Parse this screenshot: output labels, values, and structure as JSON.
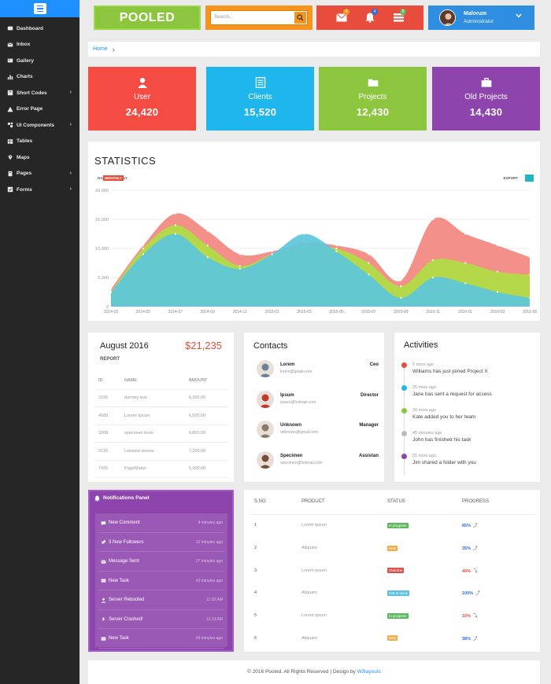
{
  "sidebar": {
    "items": [
      {
        "label": "Dashboard",
        "icon": "dashboard-icon"
      },
      {
        "label": "Inbox",
        "icon": "inbox-icon"
      },
      {
        "label": "Gallery",
        "icon": "gallery-icon"
      },
      {
        "label": "Charts",
        "icon": "charts-icon"
      },
      {
        "label": "Short Codes",
        "icon": "shortcodes-icon",
        "arrow": true
      },
      {
        "label": "Error Page",
        "icon": "warning-icon"
      },
      {
        "label": "UI Components",
        "icon": "components-icon",
        "arrow": true
      },
      {
        "label": "Tables",
        "icon": "table-icon"
      },
      {
        "label": "Maps",
        "icon": "map-marker-icon"
      },
      {
        "label": "Pages",
        "icon": "pages-icon",
        "arrow": true
      },
      {
        "label": "Forms",
        "icon": "forms-icon",
        "arrow": true
      }
    ]
  },
  "header": {
    "logo": "POOLED",
    "search_placeholder": "Search...",
    "notifications": [
      {
        "icon": "envelope-icon",
        "count": "4",
        "badge_color": "#f7941d"
      },
      {
        "icon": "bell-icon",
        "count": "4",
        "badge_color": "#2f6fe0"
      },
      {
        "icon": "tasks-icon",
        "count": "8",
        "badge_color": "#5cb85c"
      }
    ],
    "user_name": "Malorum",
    "user_role": "Administrator"
  },
  "breadcrumb": {
    "home": "Home"
  },
  "tiles": [
    {
      "label": "User",
      "value": "24,420",
      "color": "#f44b42",
      "icon": "user-icon"
    },
    {
      "label": "Clients",
      "value": "15,520",
      "color": "#1fb5ed",
      "icon": "list-icon"
    },
    {
      "label": "Projects",
      "value": "12,430",
      "color": "#8cc63f",
      "icon": "folder-icon"
    },
    {
      "label": "Old Projects",
      "value": "14,430",
      "color": "#8e44ad",
      "icon": "briefcase-icon"
    }
  ],
  "statistics": {
    "title": "STATISTICS",
    "tabs": [
      "DAILY",
      "MONTHLY",
      "YEARLY"
    ],
    "active_tab": "MONTHLY",
    "export_label": "EXPORT"
  },
  "chart_data": {
    "type": "area",
    "x": [
      "2014-03",
      "2014-05",
      "2014-07",
      "2014-09",
      "2014-11",
      "2015-01",
      "2015-03",
      "2015-05",
      "2015-07",
      "2015-09",
      "2015-11",
      "2016-01",
      "2016-03",
      "2016-05"
    ],
    "ylim": [
      0,
      20000
    ],
    "yticks": [
      "0",
      "5,000",
      "10,000",
      "15,000",
      "20,000"
    ],
    "series": [
      {
        "color": "#f4908a",
        "values": [
          3000,
          10500,
          16000,
          13000,
          9000,
          9500,
          11000,
          10500,
          9000,
          4500,
          15000,
          12500,
          10500,
          8500
        ]
      },
      {
        "color": "#b5d84a",
        "values": [
          2500,
          10000,
          14000,
          10500,
          7000,
          9000,
          10500,
          10000,
          7500,
          3500,
          8000,
          7500,
          6000,
          5500
        ]
      },
      {
        "color": "#5dc7db",
        "values": [
          2500,
          9000,
          12500,
          8500,
          6500,
          9000,
          12500,
          9500,
          5500,
          1500,
          5000,
          4000,
          2500,
          1500
        ]
      }
    ]
  },
  "report": {
    "month": "August 2016",
    "amount": "$21,235",
    "sub": "REPORT",
    "columns": [
      "ID",
      "NAME",
      "AMOUNT"
    ],
    "rows": [
      [
        "2336",
        "dummy text",
        "6,200.00"
      ],
      [
        "4589",
        "Lorem Ipsum",
        "6,500.00"
      ],
      [
        "3269",
        "specimen book",
        "6,800.00"
      ],
      [
        "5126",
        "Letraset sheets",
        "7,200.00"
      ],
      [
        "7425",
        "PageMaker",
        "5,900.00"
      ]
    ]
  },
  "contacts": {
    "title": "Contacts",
    "items": [
      {
        "name": "Lorem",
        "email": "lorem@gmail.com",
        "role": "Ceo",
        "color": "#6b7f9a"
      },
      {
        "name": "Ipsum",
        "email": "ipsum@hotmail.com",
        "role": "Director",
        "color": "#c0392b"
      },
      {
        "name": "Unknown",
        "email": "unknown@gmail.com",
        "role": "Manager",
        "color": "#8a7a6a"
      },
      {
        "name": "Specimen",
        "email": "specimen@hotmail.com",
        "role": "Assistan",
        "color": "#7a4a3a"
      }
    ]
  },
  "activities": {
    "title": "Activities",
    "items": [
      {
        "time": "5 mins ago",
        "text": "Williams has just joined Project X",
        "color": "#e74c3c"
      },
      {
        "time": "25 mins ago",
        "text": "Jane has sent a request for access",
        "color": "#1fb5ed"
      },
      {
        "time": "30 mins ago",
        "text": "Kate added you to her team",
        "color": "#8cc63f"
      },
      {
        "time": "45 minutes ago",
        "text": "John has finished his task",
        "color": "#bbbbbb"
      },
      {
        "time": "55 mins ago",
        "text": "Jim shared a folder with you",
        "color": "#8e44ad"
      }
    ]
  },
  "notifications": {
    "title": "Notifications Panel",
    "items": [
      {
        "label": "New Comment",
        "time": "4 minutes ago",
        "icon": "comment-icon"
      },
      {
        "label": "3 New Followers",
        "time": "12 minutes ago",
        "icon": "twitter-icon"
      },
      {
        "label": "Message Sent",
        "time": "27 minutes ago",
        "icon": "envelope-icon"
      },
      {
        "label": "New Task",
        "time": "43 minutes ago",
        "icon": "task-icon"
      },
      {
        "label": "Server Rebooted",
        "time": "11:32 AM",
        "icon": "upload-icon"
      },
      {
        "label": "Server Crashed!",
        "time": "11:13 AM",
        "icon": "bolt-icon"
      },
      {
        "label": "New Task",
        "time": "43 minutes ago",
        "icon": "task-icon"
      }
    ]
  },
  "products": {
    "columns": [
      "S.NO",
      "PRODUCT",
      "STATUS",
      "PROGRESS"
    ],
    "rows": [
      {
        "sno": "1",
        "product": "Lorem ipsum",
        "status": "In progress",
        "status_color": "#5cb85c",
        "progress": "85%",
        "progress_color": "#2f6fe0",
        "trend": "up"
      },
      {
        "sno": "2",
        "product": "Aliquam",
        "status": "New",
        "status_color": "#f0ad4e",
        "progress": "35%",
        "progress_color": "#2f6fe0",
        "trend": "up"
      },
      {
        "sno": "3",
        "product": "Lorem ipsum",
        "status": "Overdue",
        "status_color": "#d9534f",
        "progress": "40%",
        "progress_color": "#e74c3c",
        "trend": "down"
      },
      {
        "sno": "4",
        "product": "Aliquam",
        "status": "Out of stock",
        "status_color": "#5bc0de",
        "progress": "100%",
        "progress_color": "#2f6fe0",
        "trend": "up"
      },
      {
        "sno": "5",
        "product": "Lorem ipsum",
        "status": "In progress",
        "status_color": "#5cb85c",
        "progress": "10%",
        "progress_color": "#e74c3c",
        "trend": "down"
      },
      {
        "sno": "6",
        "product": "Aliquam",
        "status": "New",
        "status_color": "#f0ad4e",
        "progress": "38%",
        "progress_color": "#2f6fe0",
        "trend": "up"
      }
    ]
  },
  "footer": {
    "text": "© 2016 Pooled. All Rights Reserved | Design by",
    "link": "W3layouts"
  }
}
